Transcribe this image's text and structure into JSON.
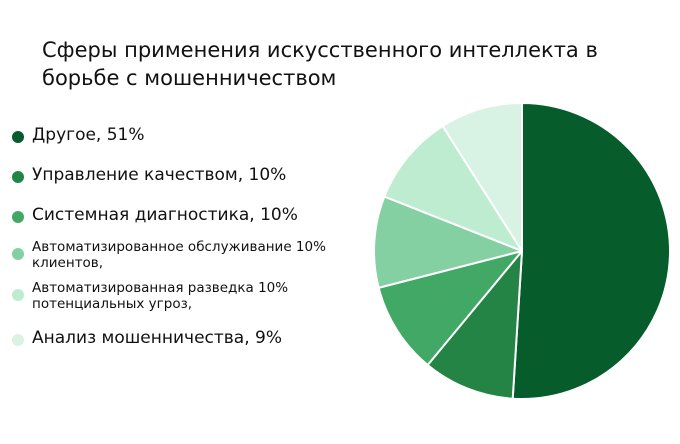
{
  "chart_data": {
    "type": "pie",
    "title": "Сферы применения искусственного интеллекта в борьбе с мошенничеством",
    "slices": [
      {
        "label": "Другое, 51%",
        "value": 51,
        "color": "#065c2a"
      },
      {
        "label": "Управление качеством, 10%",
        "value": 10,
        "color": "#238446"
      },
      {
        "label": "Системная диагностика, 10%",
        "value": 10,
        "color": "#42a866"
      },
      {
        "label": "Автоматизированное обслуживание 10% клиентов,",
        "value": 10,
        "color": "#85d0a2"
      },
      {
        "label": "Автоматизированная разведка 10% потенциальных угроз,",
        "value": 10,
        "color": "#bdecd1"
      },
      {
        "label": "Анализ мошенничества, 9%",
        "value": 9,
        "color": "#d8f2e4"
      }
    ],
    "legend_position": "left"
  }
}
